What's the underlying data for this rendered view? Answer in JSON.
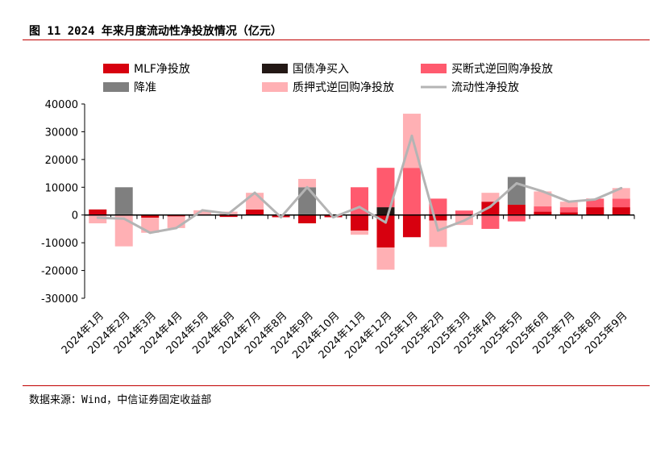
{
  "title": "图 11  2024 年来月度流动性净投放情况（亿元）",
  "source": "数据来源：Wind，中信证券固定收益部",
  "chart_data": {
    "type": "bar",
    "stacked": true,
    "title": "",
    "xlabel": "",
    "ylabel": "",
    "ylim": [
      -30000,
      40000
    ],
    "yticks": [
      40000,
      30000,
      20000,
      10000,
      0,
      -10000,
      -20000,
      -30000
    ],
    "grid": false,
    "legend_position": "top",
    "categories": [
      "2024年1月",
      "2024年2月",
      "2024年3月",
      "2024年4月",
      "2024年5月",
      "2024年6月",
      "2024年7月",
      "2024年8月",
      "2024年9月",
      "2024年10月",
      "2024年11月",
      "2024年12月",
      "2025年1月",
      "2025年2月",
      "2025年3月",
      "2025年4月",
      "2025年5月",
      "2025年6月",
      "2025年7月",
      "2025年8月",
      "2025年9月"
    ],
    "series": [
      {
        "name": "MLF净投放",
        "type": "bar",
        "color": "#d7000f",
        "values": [
          2000,
          0,
          -1000,
          -500,
          0,
          -700,
          2000,
          -800,
          -3000,
          -800,
          -5600,
          -11700,
          -8000,
          -2000,
          0,
          4800,
          3700,
          1200,
          1000,
          2800,
          2800
        ]
      },
      {
        "name": "国债净买入",
        "type": "bar",
        "color": "#231815",
        "values": [
          0,
          0,
          0,
          0,
          0,
          0,
          0,
          0,
          0,
          0,
          0,
          2800,
          0,
          0,
          0,
          0,
          0,
          0,
          0,
          0,
          0
        ]
      },
      {
        "name": "买断式逆回购净投放",
        "type": "bar",
        "color": "#ff5a6e",
        "values": [
          0,
          0,
          0,
          0,
          0,
          0,
          0,
          0,
          0,
          0,
          10000,
          14200,
          17000,
          5900,
          1600,
          -5000,
          -2300,
          1900,
          1800,
          3100,
          3100
        ]
      },
      {
        "name": "降准",
        "type": "bar",
        "color": "#7f7f7f",
        "values": [
          0,
          10000,
          0,
          0,
          0,
          0,
          0,
          0,
          10000,
          0,
          0,
          0,
          0,
          0,
          0,
          0,
          10000,
          0,
          0,
          0,
          0
        ]
      },
      {
        "name": "质押式逆回购净投放",
        "type": "bar",
        "color": "#ffb0b4",
        "values": [
          -3000,
          -11300,
          -5400,
          -4200,
          1700,
          1200,
          6000,
          0,
          3000,
          0,
          -1500,
          -8000,
          19500,
          -9500,
          -3600,
          3200,
          0,
          5400,
          2000,
          -300,
          3800
        ]
      },
      {
        "name": "流动性净投放",
        "type": "line",
        "color": "#b4b4b4",
        "values": [
          -1000,
          -1300,
          -6400,
          -4700,
          1700,
          500,
          8000,
          -800,
          10000,
          -800,
          2900,
          -2700,
          28500,
          -5600,
          -2000,
          3000,
          11400,
          8500,
          4800,
          5600,
          9700
        ]
      }
    ]
  }
}
